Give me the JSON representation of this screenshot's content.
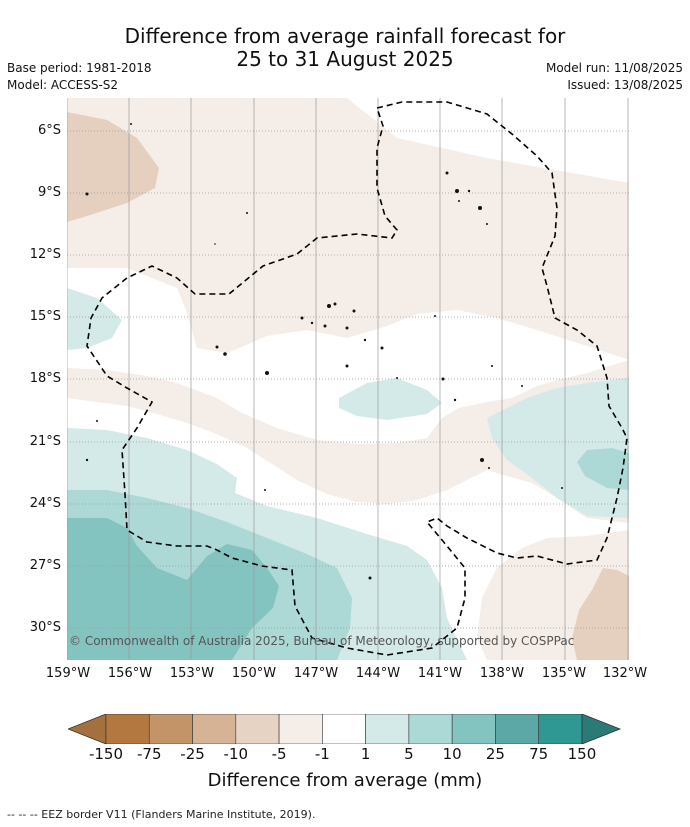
{
  "title": {
    "line1": "Difference from average rainfall forecast for",
    "line2": "25 to 31 August 2025"
  },
  "meta": {
    "base_period": "Base period: 1981-2018",
    "model": "Model: ACCESS-S2",
    "model_run": "Model run: 11/08/2025",
    "issued": "Issued: 13/08/2025"
  },
  "map": {
    "lat_labels": [
      "6°S",
      "9°S",
      "12°S",
      "15°S",
      "18°S",
      "21°S",
      "24°S",
      "27°S",
      "30°S"
    ],
    "lon_labels": [
      "159°W",
      "156°W",
      "153°W",
      "150°W",
      "147°W",
      "144°W",
      "141°W",
      "138°W",
      "135°W",
      "132°W"
    ],
    "copyright": "© Commonwealth of Australia 2025, Bureau of Meteorology, supported by COSPPac",
    "colors": {
      "ocean_neutral": "#ffffff",
      "dry_light": "#f5ede7",
      "dry_mid": "#e5d0bf",
      "wet_light": "#d4eae8",
      "wet_mid": "#acd9d6",
      "wet_strong": "#84c4c0",
      "eez_border": "#000000",
      "gridline": "#999999"
    }
  },
  "colorbar": {
    "ticks": [
      "-150",
      "-75",
      "-25",
      "-10",
      "-5",
      "-1",
      "1",
      "5",
      "10",
      "25",
      "75",
      "150"
    ],
    "colors": [
      "#a4703e",
      "#b27840",
      "#c49469",
      "#d6b394",
      "#e6d3c3",
      "#f5ede7",
      "#ffffff",
      "#d4eae8",
      "#acd9d6",
      "#84c4c0",
      "#5ba8a6",
      "#2f9892",
      "#2a7a78"
    ],
    "title": "Difference from average (mm)"
  },
  "footnote": "-- -- -- EEZ border V11 (Flanders Marine Institute, 2019)."
}
